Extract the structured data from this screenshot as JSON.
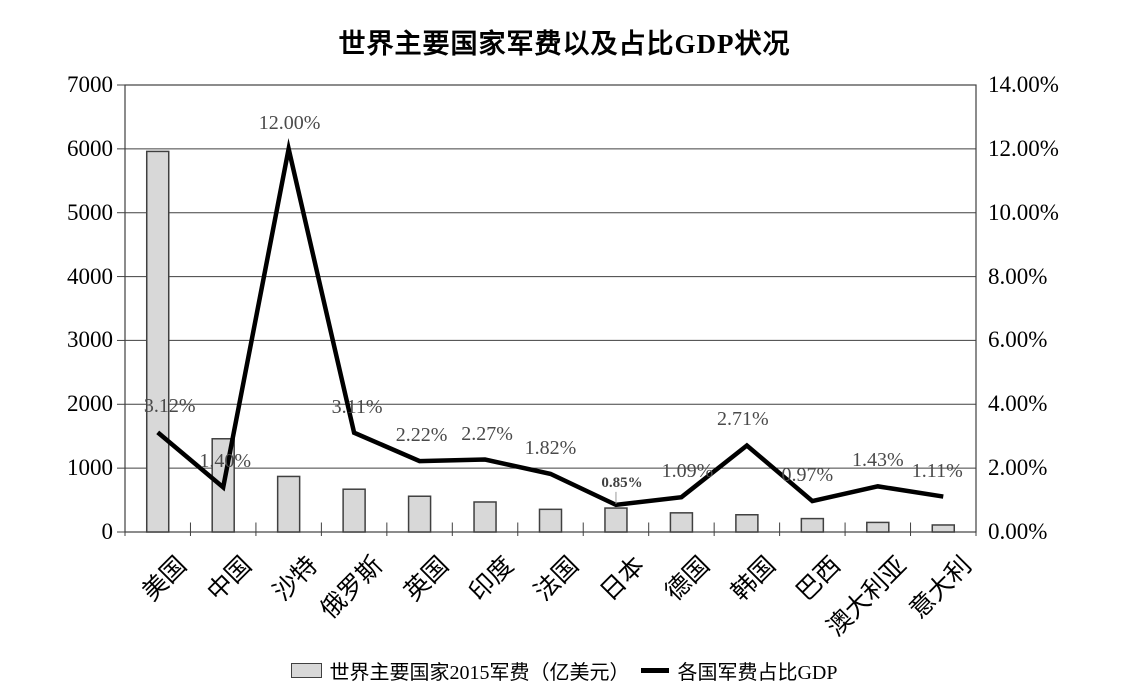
{
  "chart_data": {
    "type": "combo-bar-line",
    "title": "世界主要国家军费以及占比GDP状况",
    "categories": [
      "美国",
      "中国",
      "沙特",
      "俄罗斯",
      "英国",
      "印度",
      "法国",
      "日本",
      "德国",
      "韩国",
      "巴西",
      "澳大利亚",
      "意大利"
    ],
    "series": [
      {
        "name": "世界主要国家2015军费（亿美元）",
        "type": "bar",
        "axis": "left",
        "color": "#d8d8d8",
        "border_color": "#404040",
        "values": [
          5960,
          1460,
          870,
          670,
          560,
          470,
          355,
          375,
          300,
          270,
          210,
          150,
          110
        ]
      },
      {
        "name": "各国军费占比GDP",
        "type": "line",
        "axis": "right",
        "color": "#000000",
        "values": [
          3.12,
          1.4,
          12.0,
          3.11,
          2.22,
          2.27,
          1.82,
          0.85,
          1.09,
          2.71,
          0.97,
          1.43,
          1.11
        ],
        "point_labels": [
          "3.12%",
          "1.40%",
          "12.00%",
          "3.11%",
          "2.22%",
          "2.27%",
          "1.82%",
          "0.85%",
          "1.09%",
          "2.71%",
          "0.97%",
          "1.43%",
          "1.11%"
        ]
      }
    ],
    "left_axis": {
      "min": 0,
      "max": 7000,
      "step": 1000,
      "tick_labels": [
        "0",
        "1000",
        "2000",
        "3000",
        "4000",
        "5000",
        "6000",
        "7000"
      ]
    },
    "right_axis": {
      "min": 0,
      "max": 14,
      "step": 2,
      "tick_labels": [
        "0.00%",
        "2.00%",
        "4.00%",
        "6.00%",
        "8.00%",
        "10.00%",
        "12.00%",
        "14.00%"
      ]
    },
    "grid": true,
    "legend_position": "bottom",
    "colors": {
      "grid": "#404040",
      "data_label": "#4a4a4a",
      "background": "#ffffff"
    }
  }
}
